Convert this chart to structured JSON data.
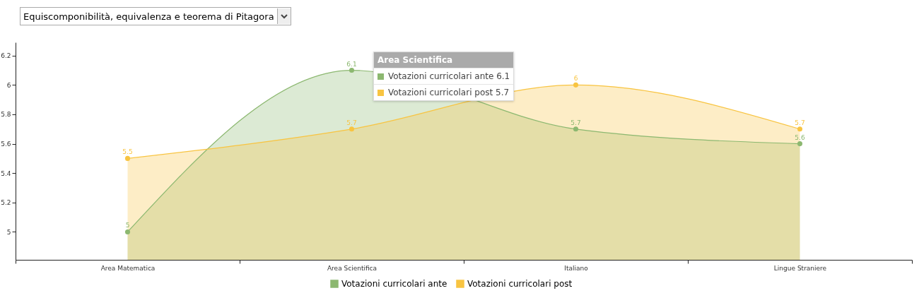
{
  "chart_data": {
    "type": "area",
    "title": "Equiscomponibilità, equivalenza e teorema di Pitagora",
    "categories": [
      "Area Matematica",
      "Area Scientifica",
      "Italiano",
      "Lingue Straniere"
    ],
    "series": [
      {
        "name": "Votazioni curricolari ante",
        "color": "#8cb870",
        "values": [
          5,
          6.1,
          5.7,
          5.6
        ]
      },
      {
        "name": "Votazioni curricolari post",
        "color": "#f8c441",
        "values": [
          5.5,
          5.7,
          6,
          5.7
        ]
      }
    ],
    "ylim": [
      4.81,
      6.29
    ],
    "yticks": [
      5,
      5.2,
      5.4,
      5.6,
      5.8,
      6,
      6.2
    ],
    "grid": false,
    "legend": "bottom",
    "data_labels": true,
    "marker": "circle",
    "annotations": [
      "Area Scientifica",
      "Votazioni curricolari ante 6.1",
      "Votazioni curricolari post 5.7"
    ]
  }
}
